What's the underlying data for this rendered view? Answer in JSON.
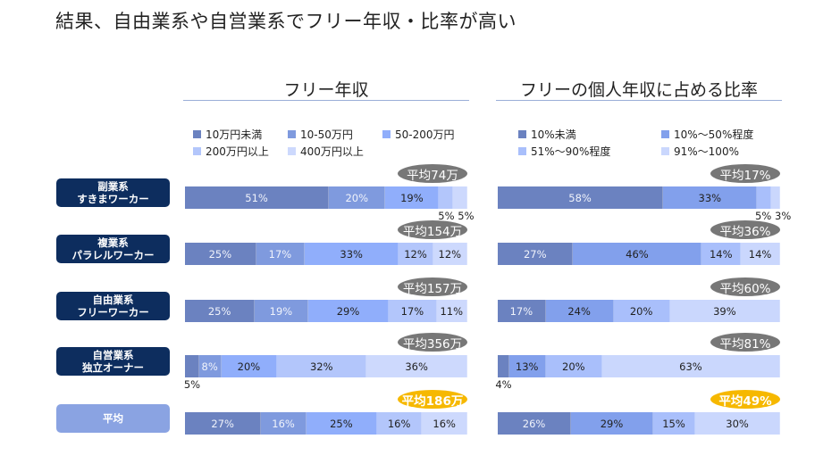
{
  "title": "結果、自由業系や自営業系でフリー年収・比率が高い",
  "row_labels": [
    {
      "line1": "副業系",
      "line2": "すきまワーカー"
    },
    {
      "line1": "複業系",
      "line2": "パラレルワーカー"
    },
    {
      "line1": "自由業系",
      "line2": "フリーワーカー"
    },
    {
      "line1": "自営業系",
      "line2": "独立オーナー"
    },
    {
      "line1": "平均",
      "line2": ""
    }
  ],
  "chart_data": [
    {
      "type": "bar",
      "orientation": "horizontal-stacked-100",
      "title": "フリー年収",
      "categories": [
        "副業系 すきまワーカー",
        "複業系 パラレルワーカー",
        "自由業系 フリーワーカー",
        "自営業系 独立オーナー",
        "平均"
      ],
      "averages": [
        "平均74万",
        "平均154万",
        "平均157万",
        "平均356万",
        "平均186万"
      ],
      "legend": "top",
      "series": [
        {
          "name": "10万円未満",
          "color": "#6b82c0",
          "values": [
            51,
            25,
            25,
            5,
            27
          ]
        },
        {
          "name": "10-50万円",
          "color": "#7f9ade",
          "values": [
            20,
            17,
            19,
            8,
            16
          ]
        },
        {
          "name": "50-200万円",
          "color": "#90aefb",
          "values": [
            19,
            33,
            29,
            20,
            25
          ]
        },
        {
          "name": "200万円以上",
          "color": "#b3c6fb",
          "values": [
            5,
            12,
            17,
            32,
            16
          ]
        },
        {
          "name": "400万円以上",
          "color": "#cdd9fd",
          "values": [
            5,
            12,
            11,
            36,
            16
          ]
        }
      ]
    },
    {
      "type": "bar",
      "orientation": "horizontal-stacked-100",
      "title": "フリーの個人年収に占める比率",
      "categories": [
        "副業系 すきまワーカー",
        "複業系 パラレルワーカー",
        "自由業系 フリーワーカー",
        "自営業系 独立オーナー",
        "平均"
      ],
      "averages": [
        "平均17%",
        "平均36%",
        "平均60%",
        "平均81%",
        "平均49%"
      ],
      "legend": "top",
      "series": [
        {
          "name": "10%未満",
          "color": "#6b82c0",
          "values": [
            58,
            27,
            17,
            4,
            26
          ]
        },
        {
          "name": "10%～50%程度",
          "color": "#82a0ec",
          "values": [
            33,
            46,
            24,
            13,
            29
          ]
        },
        {
          "name": "51%～90%程度",
          "color": "#a9bffb",
          "values": [
            5,
            14,
            20,
            20,
            15
          ]
        },
        {
          "name": "91%～100%",
          "color": "#cad7fd",
          "values": [
            3,
            14,
            39,
            63,
            30
          ]
        }
      ]
    }
  ]
}
